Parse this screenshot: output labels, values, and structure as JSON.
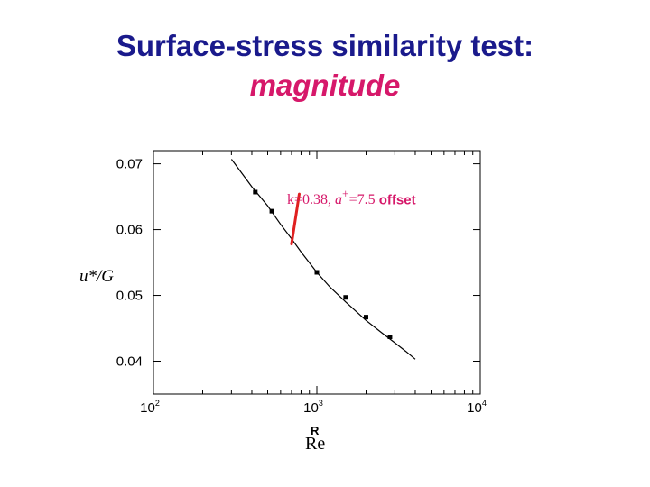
{
  "slide": {
    "title": "Surface-stress similarity test:",
    "subtitle": "magnitude"
  },
  "annotation": {
    "kappa_part": "k=0.38, ",
    "a_part": "a",
    "a_sup": "+",
    "a_value": "=7.5",
    "suffix": " offset",
    "color": "#d6186a"
  },
  "chart_data": {
    "type": "line",
    "xscale": "log",
    "xlim": [
      100,
      10000
    ],
    "ylim": [
      0.035,
      0.072
    ],
    "xlabel_top": "R",
    "xlabel": "Re",
    "ylabel": "u*/G",
    "x_ticks": [
      {
        "value": 100,
        "base": "10",
        "exp": "2"
      },
      {
        "value": 1000,
        "base": "10",
        "exp": "3"
      },
      {
        "value": 10000,
        "base": "10",
        "exp": "4"
      }
    ],
    "y_ticks": [
      {
        "value": 0.04,
        "label": "0.04"
      },
      {
        "value": 0.05,
        "label": "0.05"
      },
      {
        "value": 0.06,
        "label": "0.06"
      },
      {
        "value": 0.07,
        "label": "0.07"
      }
    ],
    "series": [
      {
        "type": "line",
        "color": "#000000",
        "x": [
          300,
          400,
          500,
          600,
          700,
          800,
          1000,
          1200,
          1500,
          2000,
          2500,
          3000,
          3500,
          4000
        ],
        "y": [
          0.0707,
          0.0665,
          0.0636,
          0.0608,
          0.0586,
          0.0566,
          0.0535,
          0.0513,
          0.049,
          0.0462,
          0.0443,
          0.0428,
          0.0415,
          0.0403
        ]
      },
      {
        "type": "scatter",
        "color": "#000000",
        "x": [
          420,
          530,
          1000,
          1500,
          2000,
          2800
        ],
        "y": [
          0.0657,
          0.0628,
          0.0535,
          0.0497,
          0.0467,
          0.0437
        ]
      }
    ],
    "pointer": {
      "from": {
        "x": 780,
        "y": 0.0654
      },
      "to": {
        "x": 700,
        "y": 0.0578
      },
      "color": "#e02020"
    }
  }
}
